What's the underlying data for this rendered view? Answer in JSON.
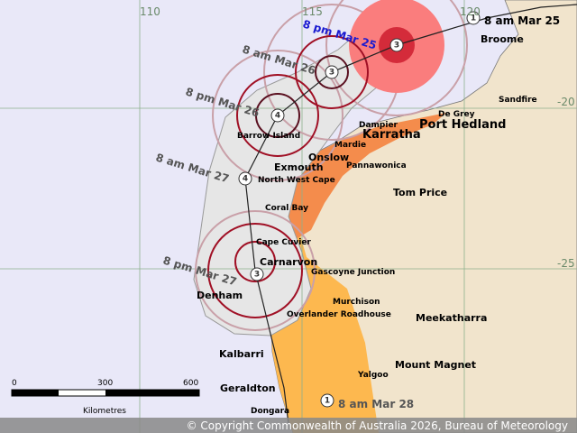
{
  "grid_labels": {
    "longitudes": [
      "110",
      "115",
      "120"
    ],
    "latitudes": [
      "-20",
      "-25"
    ]
  },
  "track_labels": [
    "8 am Mar 25",
    "8 pm Mar 25",
    "8 am Mar 26",
    "8 pm Mar 26",
    "8 am Mar 27",
    "8 pm Mar 27",
    "8 am Mar 28"
  ],
  "category_markers": [
    "1",
    "3",
    "3",
    "4",
    "4",
    "3",
    "1"
  ],
  "places": [
    "Broome",
    "Sandfire",
    "De Grey",
    "Port Hedland",
    "Dampier",
    "Karratha",
    "Barrow Island",
    "Mardie",
    "Onslow",
    "Pannawonica",
    "Exmouth",
    "North West Cape",
    "Tom Price",
    "Coral Bay",
    "Cape Cuvier",
    "Carnarvon",
    "Gascoyne Junction",
    "Denham",
    "Murchison",
    "Overlander Roadhouse",
    "Meekatharra",
    "Kalbarri",
    "Mount Magnet",
    "Yalgoo",
    "Geraldton",
    "Dongara"
  ],
  "scale_bar": {
    "ticks": [
      "0",
      "300",
      "600"
    ],
    "unit": "Kilometres"
  },
  "copyright": "© Copyright Commonwealth of Australia 2026, Bureau of Meteorology"
}
